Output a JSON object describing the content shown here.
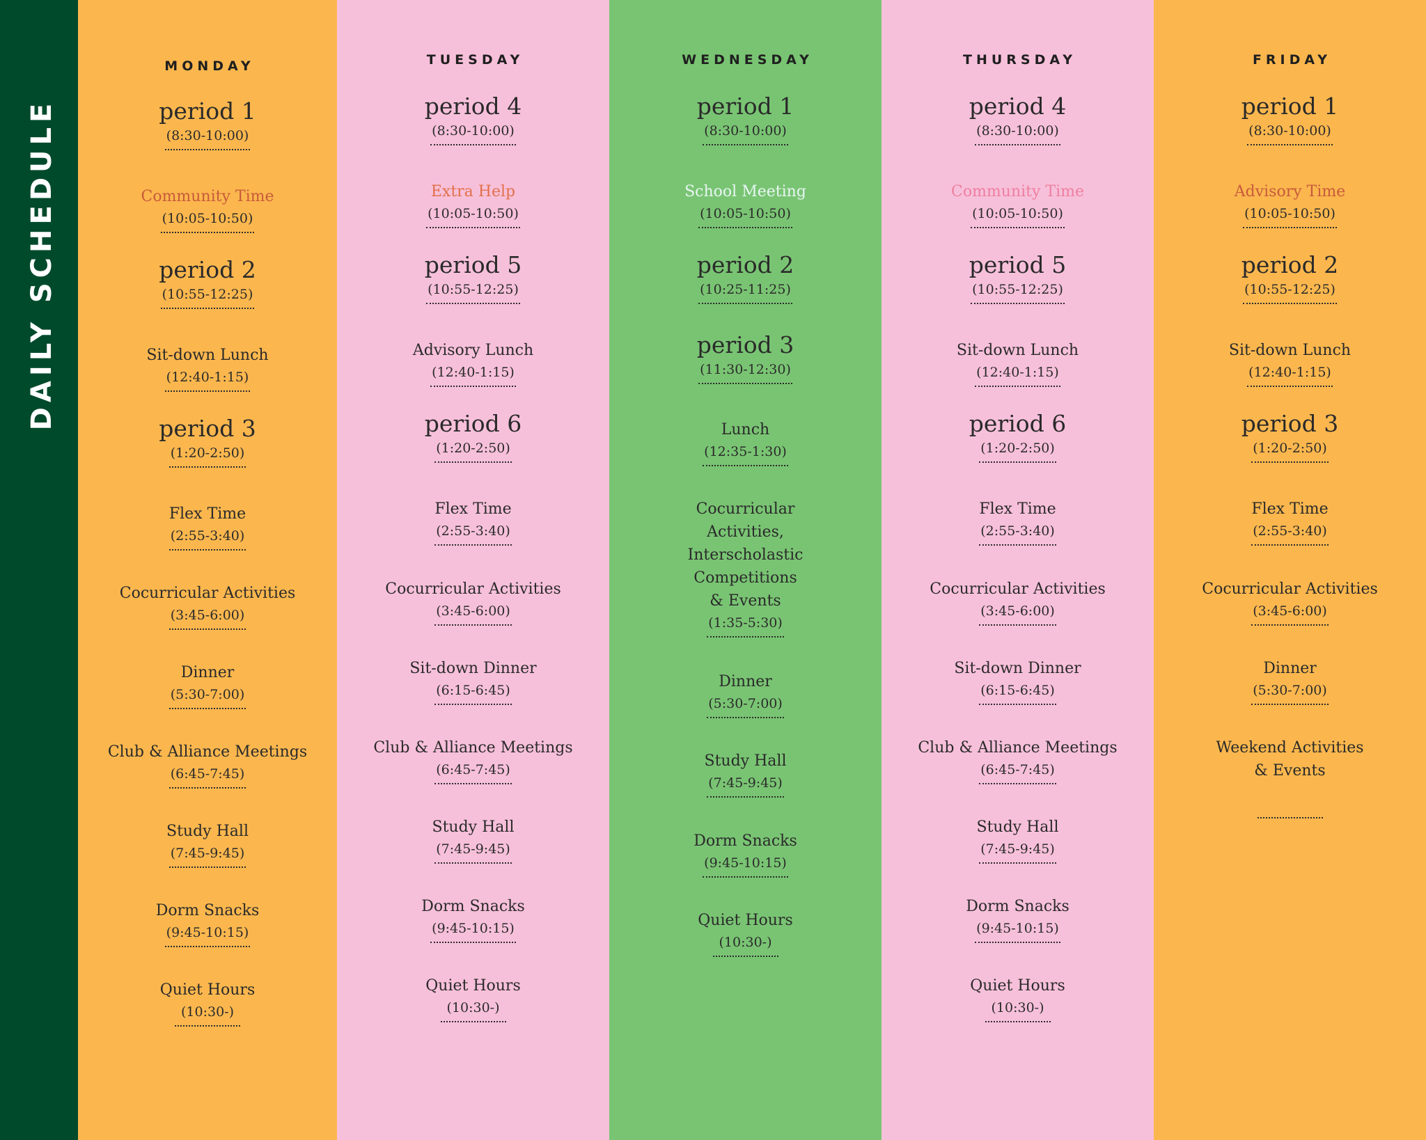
{
  "sidebar": {
    "title": "DAILY SCHEDULE",
    "background": "#004a2c"
  },
  "days": [
    {
      "name": "MONDAY",
      "background": "#fbb74e",
      "accent": "#c85a3c",
      "slots": [
        {
          "name": "period 1",
          "time": "(8:30-10:00)",
          "type": "period"
        },
        {
          "name": "Community Time",
          "time": "(10:05-10:50)",
          "type": "accent"
        },
        {
          "name": "period 2",
          "time": "(10:55-12:25)",
          "type": "period"
        },
        {
          "name": "Sit-down Lunch",
          "time": "(12:40-1:15)",
          "type": "normal"
        },
        {
          "name": "period 3",
          "time": "(1:20-2:50)",
          "type": "period"
        },
        {
          "name": "Flex Time",
          "time": "(2:55-3:40)",
          "type": "normal"
        },
        {
          "name": "Cocurricular Activities",
          "time": "(3:45-6:00)",
          "type": "normal"
        },
        {
          "name": "Dinner",
          "time": "(5:30-7:00)",
          "type": "normal"
        },
        {
          "name": "Club & Alliance Meetings",
          "time": "(6:45-7:45)",
          "type": "normal"
        },
        {
          "name": "Study Hall",
          "time": "(7:45-9:45)",
          "type": "normal"
        },
        {
          "name": "Dorm Snacks",
          "time": "(9:45-10:15)",
          "type": "normal"
        },
        {
          "name": "Quiet Hours",
          "time": "(10:30-)",
          "type": "normal"
        }
      ]
    },
    {
      "name": "TUESDAY",
      "background": "#f7c0da",
      "accent": "#e2704a",
      "slots": [
        {
          "name": "period 4",
          "time": "(8:30-10:00)",
          "type": "period"
        },
        {
          "name": "Extra Help",
          "time": "(10:05-10:50)",
          "type": "accent"
        },
        {
          "name": "period 5",
          "time": "(10:55-12:25)",
          "type": "period"
        },
        {
          "name": "Advisory Lunch",
          "time": "(12:40-1:15)",
          "type": "normal"
        },
        {
          "name": "period 6",
          "time": "(1:20-2:50)",
          "type": "period"
        },
        {
          "name": "Flex Time",
          "time": "(2:55-3:40)",
          "type": "normal"
        },
        {
          "name": "Cocurricular Activities",
          "time": "(3:45-6:00)",
          "type": "normal"
        },
        {
          "name": "Sit-down Dinner",
          "time": "(6:15-6:45)",
          "type": "normal"
        },
        {
          "name": "Club & Alliance Meetings",
          "time": "(6:45-7:45)",
          "type": "normal"
        },
        {
          "name": "Study Hall",
          "time": "(7:45-9:45)",
          "type": "normal"
        },
        {
          "name": "Dorm Snacks",
          "time": "(9:45-10:15)",
          "type": "normal"
        },
        {
          "name": "Quiet Hours",
          "time": "(10:30-)",
          "type": "normal"
        }
      ]
    },
    {
      "name": "WEDNESDAY",
      "background": "#79c473",
      "accent": "#e6f6f2",
      "slots": [
        {
          "name": "period 1",
          "time": "(8:30-10:00)",
          "type": "period"
        },
        {
          "name": "School Meeting",
          "time": "(10:05-10:50)",
          "type": "accent"
        },
        {
          "name": "period 2",
          "time": "(10:25-11:25)",
          "type": "period"
        },
        {
          "name": "period 3",
          "time": "(11:30-12:30)",
          "type": "period"
        },
        {
          "name": "Lunch",
          "time": "(12:35-1:30)",
          "type": "normal"
        },
        {
          "name": "Cocurricular\nActivities,\nInterscholastic\nCompetitions\n& Events",
          "time": "(1:35-5:30)",
          "type": "normal"
        },
        {
          "name": "Dinner",
          "time": "(5:30-7:00)",
          "type": "normal"
        },
        {
          "name": "Study Hall",
          "time": "(7:45-9:45)",
          "type": "normal"
        },
        {
          "name": "Dorm Snacks",
          "time": "(9:45-10:15)",
          "type": "normal"
        },
        {
          "name": "Quiet Hours",
          "time": "(10:30-)",
          "type": "normal"
        }
      ]
    },
    {
      "name": "THURSDAY",
      "background": "#f7c0da",
      "accent": "#ee7f9f",
      "slots": [
        {
          "name": "period 4",
          "time": "(8:30-10:00)",
          "type": "period"
        },
        {
          "name": "Community Time",
          "time": "(10:05-10:50)",
          "type": "accent"
        },
        {
          "name": "period 5",
          "time": "(10:55-12:25)",
          "type": "period"
        },
        {
          "name": "Sit-down Lunch",
          "time": "(12:40-1:15)",
          "type": "normal"
        },
        {
          "name": "period 6",
          "time": "(1:20-2:50)",
          "type": "period"
        },
        {
          "name": "Flex Time",
          "time": "(2:55-3:40)",
          "type": "normal"
        },
        {
          "name": "Cocurricular Activities",
          "time": "(3:45-6:00)",
          "type": "normal"
        },
        {
          "name": "Sit-down Dinner",
          "time": "(6:15-6:45)",
          "type": "normal"
        },
        {
          "name": "Club & Alliance Meetings",
          "time": "(6:45-7:45)",
          "type": "normal"
        },
        {
          "name": "Study Hall",
          "time": "(7:45-9:45)",
          "type": "normal"
        },
        {
          "name": "Dorm Snacks",
          "time": "(9:45-10:15)",
          "type": "normal"
        },
        {
          "name": "Quiet Hours",
          "time": "(10:30-)",
          "type": "normal"
        }
      ]
    },
    {
      "name": "FRIDAY",
      "background": "#fbb74e",
      "accent": "#c85a3c",
      "slots": [
        {
          "name": "period 1",
          "time": "(8:30-10:00)",
          "type": "period"
        },
        {
          "name": "Advisory Time",
          "time": "(10:05-10:50)",
          "type": "accent"
        },
        {
          "name": "period 2",
          "time": "(10:55-12:25)",
          "type": "period"
        },
        {
          "name": "Sit-down Lunch",
          "time": "(12:40-1:15)",
          "type": "normal"
        },
        {
          "name": "period 3",
          "time": "(1:20-2:50)",
          "type": "period"
        },
        {
          "name": "Flex Time",
          "time": "(2:55-3:40)",
          "type": "normal"
        },
        {
          "name": "Cocurricular Activities",
          "time": "(3:45-6:00)",
          "type": "normal"
        },
        {
          "name": "Dinner",
          "time": "(5:30-7:00)",
          "type": "normal"
        },
        {
          "name": "Weekend Activities\n& Events",
          "time": "",
          "type": "normal"
        }
      ]
    }
  ]
}
